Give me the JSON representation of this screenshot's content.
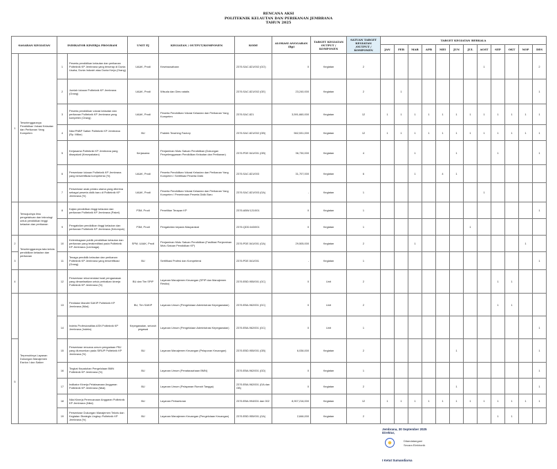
{
  "title": {
    "line1": "RENCANA AKSI",
    "line2": "POLITEKNIK KELAUTAN DAN PERIKANAN JEMBRANA",
    "line3": "TAHUN 2025"
  },
  "headers": {
    "sasaran": "SASARAN KEGIATAN",
    "indikator": "INDIKATOR KINERJA PROGRAM",
    "unit": "UNIT PJ",
    "kegiatan": "KEGIATAN / OUTPUT/KOMPONEN",
    "kode": "KODE",
    "alokasi": "ALOKASI ANGGARAN (Rp)",
    "target": "TARGET KEGIATAN OUTPUT / KOMPONEN",
    "satuan": "SATUAN TARGET KEGIATAN /OUTPUT / KOMPONEN",
    "berkala": "TARGET KEGIATAN BERKALA",
    "months": [
      "JAN",
      "FEB",
      "MAR",
      "APR",
      "MEI",
      "JUN",
      "JUL",
      "AGST",
      "SEP",
      "OKT",
      "NOP",
      "DES"
    ]
  },
  "sasaran_number_cells": [
    {
      "text": "1",
      "span": 7
    },
    {
      "text": "",
      "span": 2
    },
    {
      "text": "2",
      "span": 1
    },
    {
      "text": "3",
      "span": 1
    },
    {
      "text": "4",
      "span": 1
    },
    {
      "text": "",
      "span": 2
    },
    {
      "text": "5",
      "span": 5
    }
  ],
  "sasaran_text_cells": [
    {
      "text": "Terselenggaranya Pendidikan Vokasi Kelautan dan Perikanan Yang Kompeten",
      "span": 7
    },
    {
      "text": "Terwujudnya ilmu pengetahuan dan teknologi untuk pendidikan tinggi kelautan dan perikanan",
      "span": 2
    },
    {
      "text": "Terselenggaranya tata kelola pendidikan kelautan dan perikanan",
      "span": 2
    },
    {
      "text": "",
      "span": 1
    },
    {
      "text": "Terpenuhinya Layanan Dukungan Manajemen Eselon I dan Satker",
      "span": 7
    }
  ],
  "rows": [
    {
      "no": "1",
      "indikator": "Peserta pendidikan kelautan dan perikanan Politeknik KP Jembrana yang terserap di Dunia Usaha, Dunia Industri atau Dunia Kerja (Orang)",
      "unit": "UAAK, Prodi",
      "kegiatan": "Kewirausahaan",
      "kode": "2376.SAC.821/002 (GO)",
      "alokasi": "0",
      "target": "Kegiatan",
      "satuan": "2",
      "months": [
        "",
        "",
        "",
        "",
        "",
        "",
        "",
        "1",
        "",
        "",
        "",
        "2"
      ]
    },
    {
      "no": "2",
      "indikator": "Jumlah lulusan Politeknik KP Jembrana (Orang)",
      "unit": "UAAK, Prodi",
      "kegiatan": "Wisuda dan Dies natalis",
      "kode": "2376.SAC.821/002 (GE)",
      "alokasi": "23,240,000",
      "target": "Kegiatan",
      "satuan": "2",
      "months": [
        "",
        "1",
        "",
        "",
        "",
        "",
        "",
        "",
        "",
        "",
        "",
        "1"
      ]
    },
    {
      "no": "3",
      "indikator": "Peserta pendidikan vokasi kelautan dan perikanan Politeknik KP Jembrana yang kompeten (Orang)",
      "unit": "UAAK, Prodi",
      "kegiatan": "Peserta Pendidikan Vokasi Kelautan dan Perikanan Yang Kompeten",
      "kode": "2376.SAC.821",
      "alokasi": "3,591,660,000",
      "target": "Kegiatan",
      "satuan": "12",
      "months": [
        "1",
        "1",
        "1",
        "1",
        "1",
        "1",
        "1",
        "1",
        "1",
        "1",
        "1",
        "1"
      ]
    },
    {
      "no": "4",
      "indikator": "Nilai PNBP Satker Politeknik KP Jembrana (Rp. Miliar)",
      "unit": "BU",
      "kegiatan": "Praktek Teaching Factory",
      "kode": "2376.SAC.821/002 (GB)",
      "alokasi": "562,531,000",
      "target": "Kegiatan",
      "satuan": "12",
      "months": [
        "1",
        "1",
        "1",
        "1",
        "1",
        "1",
        "1",
        "1",
        "1",
        "1",
        "1",
        "1"
      ]
    },
    {
      "no": "5",
      "indikator": "Kerjasama Politeknik KP Jembrana yang disepakati (Kesepakatan)",
      "unit": "Kerjasama",
      "kegiatan": "Penjaminan Mutu Satuan Pendidikan (Dukungan Penyelenggaraan Pendidikan Kelautan dan Perikanan)",
      "kode": "2376.PDE.541/001 (GB)",
      "alokasi": "36,730,000",
      "target": "Kegiatan",
      "satuan": "4",
      "months": [
        "",
        "",
        "1",
        "",
        "",
        "1",
        "",
        "",
        "1",
        "",
        "",
        "1"
      ]
    },
    {
      "no": "6",
      "indikator": "Persentase lulusan Politeknik KP Jembrana yang bersertifikasi kompetensi (%)",
      "unit": "UAAK, Prodi",
      "kegiatan": "Peserta Pendidikan Vokasi Kelautan dan Perikanan Yang Kompeten / Sertifikasi Peserta Didik",
      "kode": "2376.SAC.821/003",
      "alokasi": "31,707,000",
      "target": "Kegiatan",
      "satuan": "6",
      "months": [
        "",
        "",
        "1",
        "",
        "4",
        "1",
        "",
        "",
        "",
        "",
        "",
        ""
      ]
    },
    {
      "no": "7",
      "indikator": "Persentase anak pelaku utama yang diterima sebagai peserta didik baru di Politeknik KP Jembrana (%)",
      "unit": "UAAK, Prodi",
      "kegiatan": "Peserta Pendidikan Vokasi Kelautan dan Perikanan Yang Kompeten / Penerimaan Peserta Didik Baru",
      "kode": "2376.SAC.821/003 (GA)",
      "alokasi": "-",
      "target": "Kegiatan",
      "satuan": "1",
      "months": [
        "",
        "",
        "",
        "",
        "",
        "",
        "",
        "1",
        "",
        "",
        "",
        ""
      ]
    },
    {
      "no": "8",
      "indikator": "Kajian pendidikan tinggi kelautan dan perikanan Politeknik KP Jembrana (Paket)",
      "unit": "P3M, Prodi",
      "kegiatan": "Penelitian Terapan KP",
      "kode": "2376.ABW.121/001",
      "alokasi": "0",
      "target": "Kegiatan",
      "satuan": "1",
      "months": [
        "",
        "",
        "",
        "",
        "",
        "",
        "",
        "",
        "",
        "",
        "",
        "1"
      ]
    },
    {
      "no": "9",
      "indikator": "Pengabdian pendidikan tinggi kelautan dan perikanan Politeknik KP Jembrana (Kelompok)",
      "unit": "P3M, Prodi",
      "kegiatan": "Pengabdian kepada Masyarakat",
      "kode": "2376.QDD.643/001",
      "alokasi": "0",
      "target": "Kegiatan",
      "satuan": "1",
      "months": [
        "",
        "",
        "",
        "",
        "",
        "",
        "1",
        "",
        "",
        "",
        "",
        ""
      ]
    },
    {
      "no": "10",
      "indikator": "Kelembagaan publik pendidikan kelautan dan perikanan yang terakreditasi pada Politeknik KP Jembrana (Lembaga)",
      "unit": "SPM, UAAK, Prodi",
      "kegiatan": "Penjaminan Mutu Satuan Pendidikan (Fasilitasi Penjaminan Mutu Satuan Pendidikan KP)",
      "kode": "2376.PDE.541/001 (GA)",
      "alokasi": "29,505,000",
      "target": "Kegiatan",
      "satuan": "2",
      "months": [
        "",
        "",
        "1",
        "",
        "",
        "",
        "",
        "",
        "",
        "",
        "1",
        ""
      ]
    },
    {
      "no": "11",
      "indikator": "Tenaga pendidik kelautan dan perikanan Politeknik KP Jembrana yang tersertifikasi (Orang)",
      "unit": "BU",
      "kegiatan": "Sertifikasi Profesi dan Kompetensi",
      "kode": "2376.PDE.541/001",
      "alokasi": "-",
      "target": "Kegiatan",
      "satuan": "1",
      "months": [
        "",
        "",
        "",
        "",
        "",
        "",
        "",
        "",
        "",
        "",
        "",
        "1"
      ]
    },
    {
      "no": "12",
      "indikator": "Persentase rekomendasi hasil pengawasan yang dimanfaatkan untuk perbaikan kinerja Politeknik KP Jembrana (%)",
      "unit": "BU dan Tim SPIP",
      "kegiatan": "Layanan Manajemen Keuangan (SPIP dan Manajemen Resiko)",
      "kode": "2376.EBD.955/001 (GC)",
      "alokasi": "0",
      "target": "Unit",
      "satuan": "2",
      "months": [
        "",
        "",
        "",
        "",
        "",
        "",
        "",
        "",
        "1",
        "1",
        "",
        ""
      ]
    },
    {
      "no": "13",
      "indikator": "Penilaian Mandiri SAKIP Politeknik KP Jembrana (Nilai)",
      "unit": "BU, Tim SAKIP",
      "kegiatan": "Layanan Umum (Pengelolaan Administrasi Kepegawaian)",
      "kode": "2376.EBA.962/001 (GC)",
      "alokasi": "0",
      "target": "Unit",
      "satuan": "2",
      "months": [
        "",
        "",
        "",
        "",
        "",
        "",
        "",
        "",
        "1",
        "1",
        "",
        ""
      ]
    },
    {
      "no": "14",
      "indikator": "Indeks Profesionalitas ASN Politeknik KP Jembrana (Indeks)",
      "unit": "Kepegawaian, seluruh pegawai",
      "kegiatan": "Layanan Umum (Pengelolaan Administrasi Kepegawaian)",
      "kode": "2376.EBA.962/001 (GC)",
      "alokasi": "0",
      "target": "Unit",
      "satuan": "1",
      "months": [
        "",
        "",
        "",
        "",
        "",
        "",
        "",
        "",
        "",
        "",
        "",
        "1"
      ]
    },
    {
      "no": "15",
      "indikator": "Persentase rencana umum pengadaan PBJ yang diumumkan pada SIRUP Politeknik KP Jembrana (%)",
      "unit": "BU",
      "kegiatan": "Layanan Manajemen Keuangan (Pelaporan Keuangan)",
      "kode": "2376.EBD.955/001 (GB)",
      "alokasi": "6,036,000",
      "target": "Kegiatan",
      "satuan": "2",
      "months": [
        "",
        "",
        "",
        "",
        "",
        "1",
        "",
        "",
        "",
        "",
        "",
        "1"
      ]
    },
    {
      "no": "16",
      "indikator": "Tingkat Kepatuhan Pengelolaan BMN Politeknik KP Jembrana (%)",
      "unit": "BU",
      "kegiatan": "Layanan Umum (Penatausahaan BMN)",
      "kode": "2376.EBA.962/001 (GD)",
      "alokasi": "0",
      "target": "Kegiatan",
      "satuan": "1",
      "months": [
        "",
        "",
        "",
        "",
        "",
        "",
        "",
        "",
        "",
        "",
        "",
        "1"
      ]
    },
    {
      "no": "17",
      "indikator": "Indikator Kinerja Pelaksanaan Anggaran Politeknik KP Jembrana (Nilai)",
      "unit": "BU",
      "kegiatan": "Layanan Umum (Pelayanan Rumah Tangga)",
      "kode": "2376.EBA.962/001 (GA dan GB)",
      "alokasi": "0",
      "target": "Kegiatan",
      "satuan": "2",
      "months": [
        "",
        "",
        "",
        "",
        "",
        "1",
        "",
        "",
        "",
        "",
        "",
        "1"
      ]
    },
    {
      "no": "18",
      "indikator": "Nilai Kinerja Perencanaan Anggaran Politeknik KP Jembrana (Nilai)",
      "unit": "BU",
      "kegiatan": "Layanan Perkantoran",
      "kode": "2376.EBA.994/001 dan 002",
      "alokasi": "8,907,216,000",
      "target": "Kegiatan",
      "satuan": "12",
      "months": [
        "1",
        "1",
        "1",
        "1",
        "1",
        "1",
        "1",
        "1",
        "1",
        "1",
        "1",
        "1"
      ]
    },
    {
      "no": "19",
      "indikator": "Persentase Dukungan Manajemen Teknis dan Kegiatan Strategis Lingkup Politeknik KP Jembrana (%)",
      "unit": "BU",
      "kegiatan": "Layanan Manajemen Keuangan (Pengelolaan Keuangan)",
      "kode": "2376.EBD.955/001 (GA)",
      "alokasi": "2,846,000",
      "target": "Kegiatan",
      "satuan": "2",
      "months": [
        "",
        "",
        "",
        "",
        "",
        "",
        "",
        "",
        "1",
        "1",
        "",
        ""
      ]
    }
  ],
  "footer": {
    "place_date": "Jembrana, 30 September 2025",
    "position": "Direktur,",
    "seal_text_1": "Ditandatangani",
    "seal_text_2": "Secara Elektronik",
    "signer": "I Ketut Sumandiarsa"
  }
}
